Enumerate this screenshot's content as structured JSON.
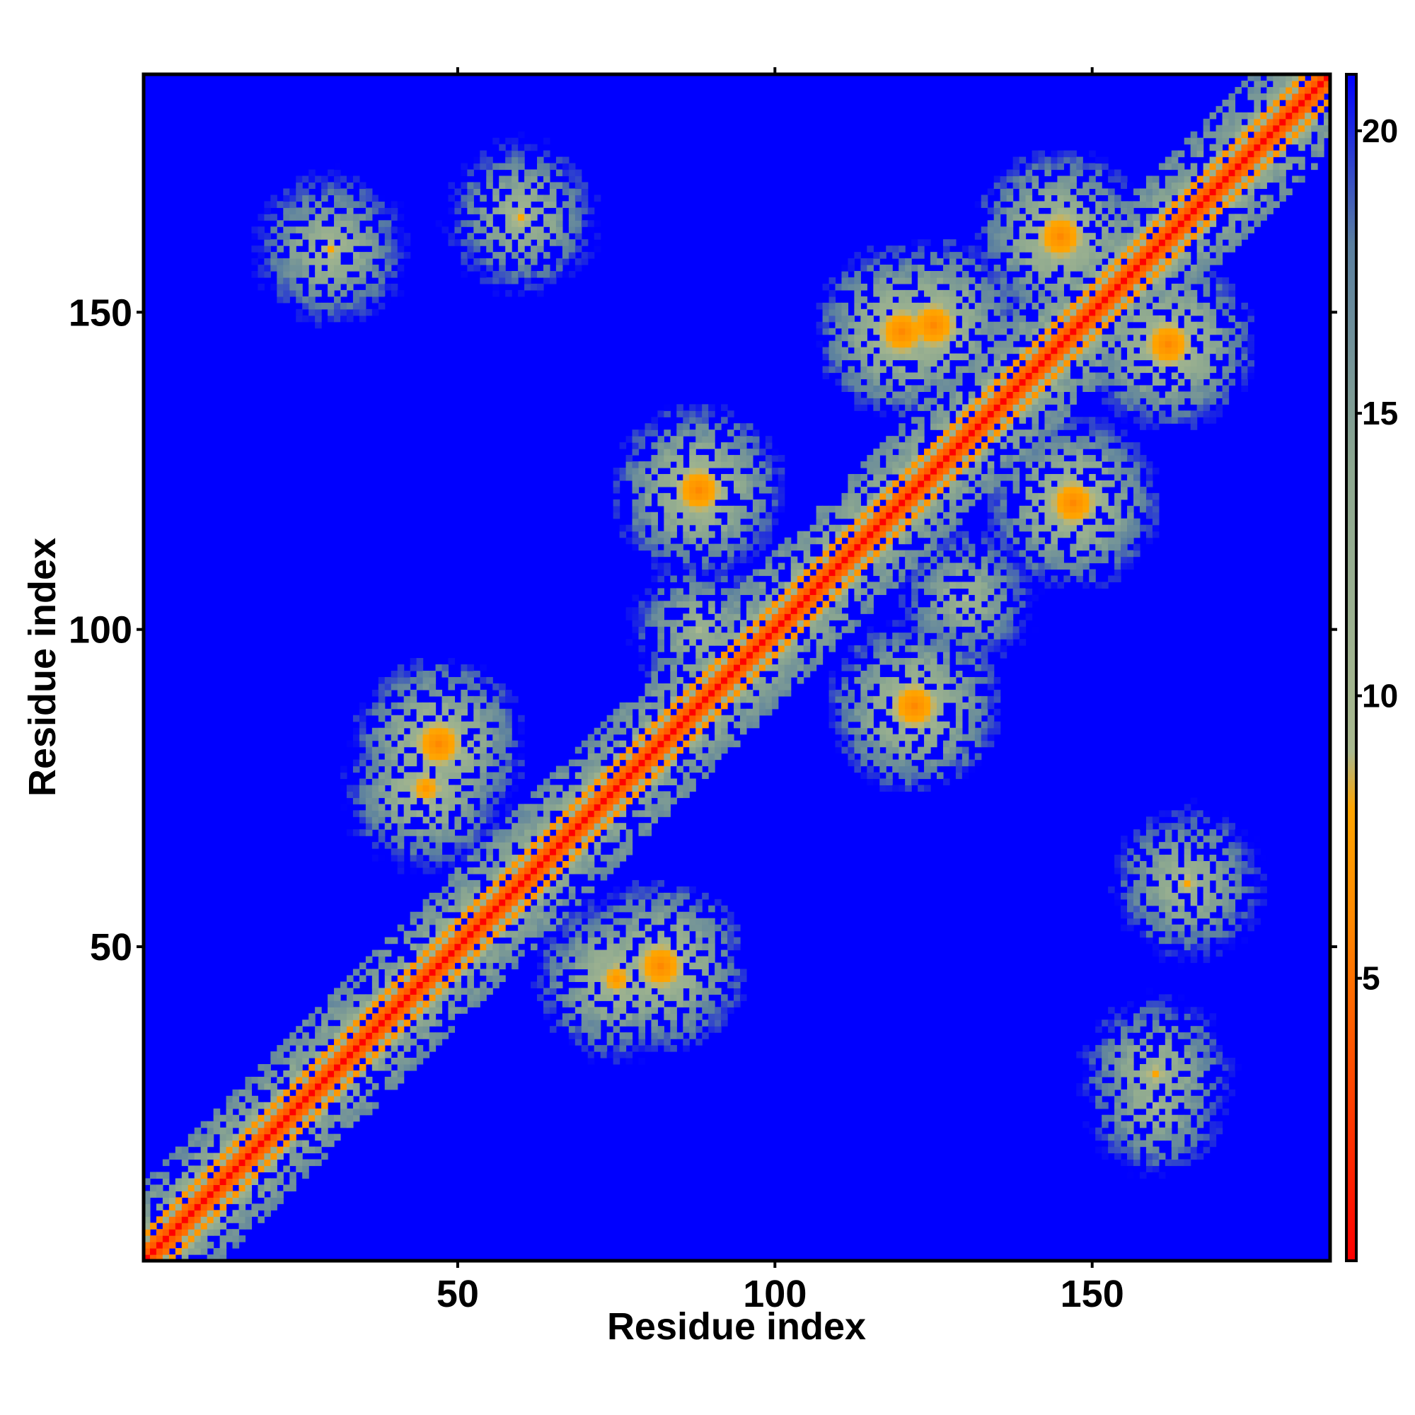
{
  "chart_data": {
    "type": "heatmap",
    "title": "",
    "xlabel": "Residue index",
    "ylabel": "Residue index",
    "n_residues": 187,
    "xlim": [
      1,
      187
    ],
    "ylim": [
      1,
      187
    ],
    "x_ticks": [
      50,
      100,
      150
    ],
    "y_ticks": [
      50,
      100,
      150
    ],
    "colorbar": {
      "ticks": [
        5,
        10,
        15,
        20
      ],
      "range": [
        0,
        21
      ],
      "stops": [
        {
          "value": 0,
          "color": "#ff0000"
        },
        {
          "value": 6,
          "color": "#ff8800"
        },
        {
          "value": 8,
          "color": "#ffa500"
        },
        {
          "value": 9,
          "color": "#a9b98f"
        },
        {
          "value": 14,
          "color": "#8da890"
        },
        {
          "value": 18,
          "color": "#5a7fa0"
        },
        {
          "value": 21,
          "color": "#0000ff"
        }
      ]
    },
    "diagonal_band": {
      "core_distance": 0,
      "near_distance": 5,
      "helix_periodicity": 4
    },
    "contact_clusters": [
      {
        "i": 82,
        "j": 47,
        "distance": 6
      },
      {
        "i": 47,
        "j": 82,
        "distance": 6
      },
      {
        "i": 122,
        "j": 88,
        "distance": 6
      },
      {
        "i": 88,
        "j": 122,
        "distance": 6
      },
      {
        "i": 120,
        "j": 147,
        "distance": 6
      },
      {
        "i": 147,
        "j": 120,
        "distance": 6
      },
      {
        "i": 145,
        "j": 162,
        "distance": 6
      },
      {
        "i": 162,
        "j": 145,
        "distance": 6
      },
      {
        "i": 125,
        "j": 148,
        "distance": 6
      },
      {
        "i": 75,
        "j": 45,
        "distance": 7
      },
      {
        "i": 45,
        "j": 75,
        "distance": 7
      },
      {
        "i": 30,
        "j": 160,
        "distance": 8
      },
      {
        "i": 160,
        "j": 30,
        "distance": 8
      },
      {
        "i": 165,
        "j": 60,
        "distance": 8
      },
      {
        "i": 60,
        "j": 165,
        "distance": 8
      },
      {
        "i": 88,
        "j": 100,
        "distance": 9
      },
      {
        "i": 130,
        "j": 105,
        "distance": 9
      },
      {
        "i": 160,
        "j": 25,
        "distance": 9
      }
    ]
  }
}
